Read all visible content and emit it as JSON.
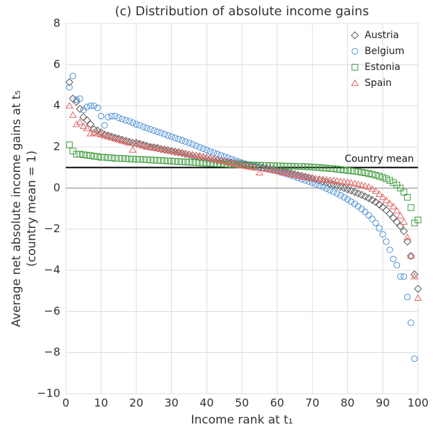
{
  "chart_data": {
    "type": "scatter",
    "title": "(c) Distribution of absolute income gains",
    "xlabel": "Income rank at t₁",
    "ylabel": [
      "Average net absolute income gains at t₅",
      "(country mean = 1)"
    ],
    "xlim": [
      0,
      100
    ],
    "ylim": [
      -10,
      8
    ],
    "xticks": [
      0,
      10,
      20,
      30,
      40,
      50,
      60,
      70,
      80,
      90,
      100
    ],
    "yticks": [
      {
        "value": -10,
        "label": "−10"
      },
      {
        "value": -8,
        "label": "−8"
      },
      {
        "value": -6,
        "label": "−6"
      },
      {
        "value": -4,
        "label": "−4"
      },
      {
        "value": -2,
        "label": "−2"
      },
      0,
      2,
      4,
      6,
      8
    ],
    "grid": true,
    "legend": "upper right",
    "hlines": [
      {
        "value": 0,
        "color": "#999999"
      },
      {
        "value": 1,
        "color": "#000000",
        "label": "Country mean"
      }
    ],
    "x": [
      1,
      2,
      3,
      4,
      5,
      6,
      7,
      8,
      9,
      10,
      11,
      12,
      13,
      14,
      15,
      16,
      17,
      18,
      19,
      20,
      21,
      22,
      23,
      24,
      25,
      26,
      27,
      28,
      29,
      30,
      31,
      32,
      33,
      34,
      35,
      36,
      37,
      38,
      39,
      40,
      41,
      42,
      43,
      44,
      45,
      46,
      47,
      48,
      49,
      50,
      51,
      52,
      53,
      54,
      55,
      56,
      57,
      58,
      59,
      60,
      61,
      62,
      63,
      64,
      65,
      66,
      67,
      68,
      69,
      70,
      71,
      72,
      73,
      74,
      75,
      76,
      77,
      78,
      79,
      80,
      81,
      82,
      83,
      84,
      85,
      86,
      87,
      88,
      89,
      90,
      91,
      92,
      93,
      94,
      95,
      96,
      97,
      98,
      99,
      100
    ],
    "series": [
      {
        "name": "Austria",
        "color": "#555555",
        "marker": "diamond",
        "values": [
          5.15,
          4.35,
          4.2,
          3.85,
          3.45,
          3.3,
          3.1,
          2.85,
          2.8,
          2.7,
          2.6,
          2.55,
          2.5,
          2.45,
          2.4,
          2.35,
          2.3,
          2.25,
          2.2,
          2.2,
          2.15,
          2.1,
          2.05,
          2.0,
          1.98,
          1.95,
          1.9,
          1.87,
          1.84,
          1.8,
          1.77,
          1.74,
          1.7,
          1.66,
          1.62,
          1.58,
          1.55,
          1.5,
          1.47,
          1.44,
          1.41,
          1.38,
          1.35,
          1.32,
          1.3,
          1.27,
          1.24,
          1.22,
          1.2,
          1.17,
          1.14,
          1.11,
          1.08,
          1.05,
          1.02,
          0.99,
          0.96,
          0.93,
          0.9,
          0.87,
          0.83,
          0.79,
          0.75,
          0.71,
          0.67,
          0.63,
          0.59,
          0.55,
          0.51,
          0.47,
          0.42,
          0.37,
          0.32,
          0.27,
          0.22,
          0.17,
          0.12,
          0.06,
          0.0,
          -0.06,
          -0.12,
          -0.19,
          -0.26,
          -0.33,
          -0.41,
          -0.49,
          -0.58,
          -0.68,
          -0.8,
          -0.93,
          -1.08,
          -1.25,
          -1.45,
          -1.65,
          -1.85,
          -2.1,
          -2.6,
          -3.3,
          -4.2,
          -4.9
        ]
      },
      {
        "name": "Belgium",
        "color": "#4a8fd6",
        "marker": "circle",
        "values": [
          4.9,
          5.45,
          4.3,
          4.35,
          3.8,
          3.95,
          4.0,
          4.0,
          3.9,
          3.5,
          3.05,
          3.45,
          3.5,
          3.5,
          3.42,
          3.36,
          3.3,
          3.25,
          3.18,
          3.1,
          3.05,
          2.98,
          2.92,
          2.86,
          2.8,
          2.74,
          2.68,
          2.62,
          2.56,
          2.5,
          2.44,
          2.38,
          2.32,
          2.26,
          2.2,
          2.13,
          2.06,
          1.99,
          1.92,
          1.85,
          1.78,
          1.72,
          1.66,
          1.6,
          1.54,
          1.47,
          1.41,
          1.35,
          1.29,
          1.23,
          1.18,
          1.14,
          1.1,
          1.06,
          1.02,
          0.98,
          0.94,
          0.9,
          0.86,
          0.82,
          0.77,
          0.72,
          0.67,
          0.62,
          0.56,
          0.5,
          0.44,
          0.38,
          0.32,
          0.26,
          0.19,
          0.12,
          0.05,
          -0.02,
          -0.1,
          -0.18,
          -0.26,
          -0.35,
          -0.45,
          -0.55,
          -0.66,
          -0.77,
          -0.89,
          -1.02,
          -1.16,
          -1.32,
          -1.5,
          -1.7,
          -1.95,
          -2.25,
          -2.6,
          -3.0,
          -3.45,
          -3.75,
          -4.3,
          -4.3,
          -5.3,
          -6.55,
          -8.3,
          null
        ]
      },
      {
        "name": "Estonia",
        "color": "#3a9a3a",
        "marker": "square",
        "values": [
          2.1,
          1.8,
          1.65,
          1.65,
          1.62,
          1.6,
          1.58,
          1.55,
          1.53,
          1.5,
          1.5,
          1.48,
          1.47,
          1.45,
          1.45,
          1.44,
          1.43,
          1.42,
          1.41,
          1.4,
          1.4,
          1.39,
          1.38,
          1.37,
          1.36,
          1.35,
          1.34,
          1.33,
          1.32,
          1.31,
          1.3,
          1.29,
          1.28,
          1.27,
          1.26,
          1.25,
          1.24,
          1.23,
          1.22,
          1.21,
          1.2,
          1.19,
          1.18,
          1.18,
          1.17,
          1.16,
          1.15,
          1.15,
          1.14,
          1.13,
          1.13,
          1.12,
          1.12,
          1.11,
          1.11,
          1.1,
          1.1,
          1.09,
          1.09,
          1.08,
          1.08,
          1.07,
          1.07,
          1.06,
          1.06,
          1.05,
          1.05,
          1.04,
          1.03,
          1.02,
          1.01,
          1.0,
          0.98,
          0.97,
          0.95,
          0.94,
          0.92,
          0.9,
          0.88,
          0.86,
          0.84,
          0.82,
          0.8,
          0.77,
          0.74,
          0.71,
          0.67,
          0.63,
          0.58,
          0.52,
          0.45,
          0.37,
          0.27,
          0.15,
          0.0,
          -0.2,
          -0.45,
          -0.95,
          -1.7,
          -1.55
        ]
      },
      {
        "name": "Spain",
        "color": "#e06464",
        "marker": "triangle",
        "values": [
          4.0,
          3.55,
          3.1,
          3.2,
          3.0,
          2.9,
          2.65,
          2.7,
          2.65,
          2.6,
          2.55,
          2.5,
          2.45,
          2.4,
          2.35,
          2.3,
          2.25,
          2.2,
          1.85,
          2.15,
          2.1,
          2.05,
          2.0,
          1.98,
          1.95,
          1.92,
          1.89,
          1.86,
          1.83,
          1.8,
          1.77,
          1.74,
          1.71,
          1.68,
          1.65,
          1.62,
          1.59,
          1.56,
          1.53,
          1.5,
          1.46,
          1.42,
          1.38,
          1.34,
          1.3,
          1.26,
          1.22,
          1.18,
          1.14,
          1.1,
          1.07,
          1.04,
          1.01,
          0.98,
          0.75,
          0.95,
          0.92,
          0.89,
          0.86,
          0.83,
          0.8,
          0.76,
          0.72,
          0.68,
          0.64,
          0.6,
          0.57,
          0.54,
          0.51,
          0.48,
          0.46,
          0.44,
          0.42,
          0.4,
          0.38,
          0.36,
          0.34,
          0.32,
          0.3,
          0.28,
          0.25,
          0.22,
          0.18,
          0.14,
          0.1,
          0.05,
          -0.05,
          -0.15,
          -0.3,
          -0.45,
          -0.6,
          -0.75,
          -0.9,
          -1.1,
          -1.35,
          -1.65,
          -2.4,
          -3.3,
          -4.3,
          -5.35
        ]
      }
    ]
  }
}
